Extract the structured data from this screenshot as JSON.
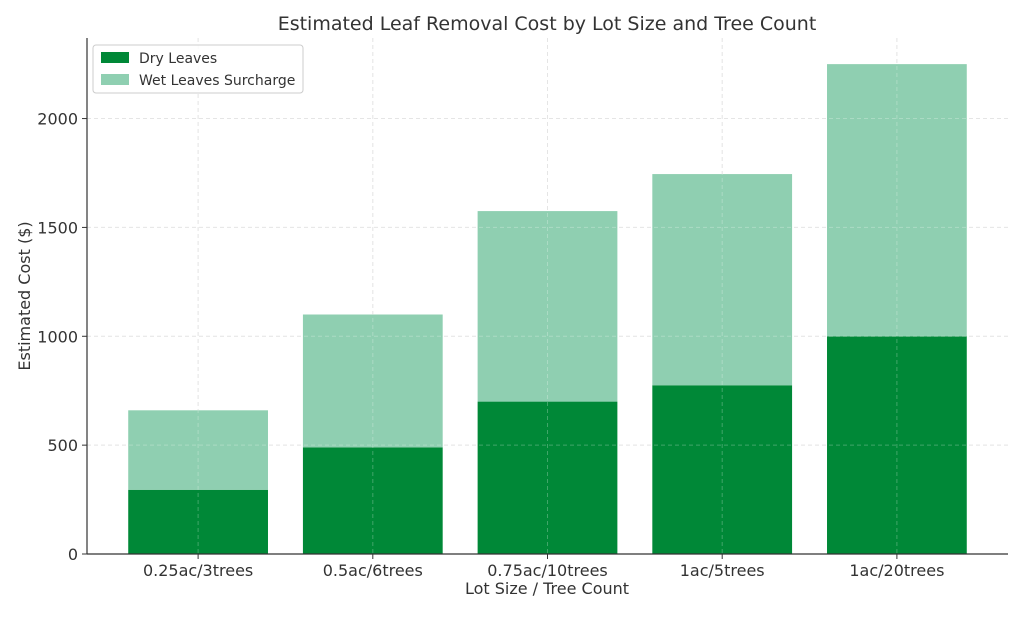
{
  "chart_data": {
    "type": "bar",
    "stacked": true,
    "title": "Estimated Leaf Removal Cost by Lot Size and Tree Count",
    "xlabel": "Lot Size / Tree Count",
    "ylabel": "Estimated Cost ($)",
    "categories": [
      "0.25ac/3trees",
      "0.5ac/6trees",
      "0.75ac/10trees",
      "1ac/5trees",
      "1ac/20trees"
    ],
    "series": [
      {
        "name": "Dry Leaves",
        "color": "#008837",
        "values": [
          295,
          490,
          700,
          775,
          1000
        ]
      },
      {
        "name": "Wet Leaves Surcharge",
        "color": "#8fcfb1",
        "values": [
          365,
          610,
          875,
          970,
          1250
        ]
      }
    ],
    "ylim": [
      0,
      2370
    ],
    "yticks": [
      0,
      500,
      1000,
      1500,
      2000
    ],
    "grid": true,
    "legend_position": "top-left"
  }
}
